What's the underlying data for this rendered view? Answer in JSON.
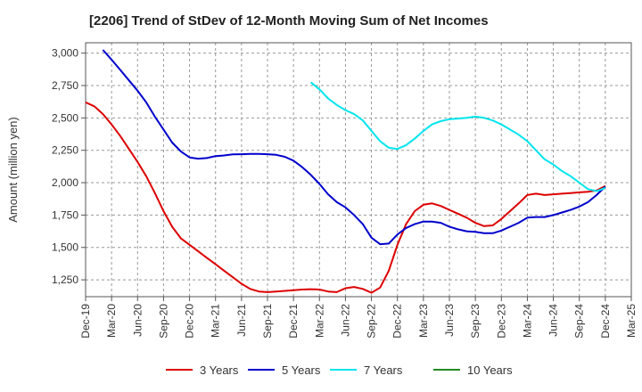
{
  "chart_data": {
    "type": "line",
    "title": "[2206]  Trend of StDev of 12-Month Moving Sum of Net Incomes",
    "xlabel": "",
    "ylabel": "Amount (million yen)",
    "x_ticks": [
      "Dec-19",
      "Mar-20",
      "Jun-20",
      "Sep-20",
      "Dec-20",
      "Mar-21",
      "Jun-21",
      "Sep-21",
      "Dec-21",
      "Mar-22",
      "Jun-22",
      "Sep-22",
      "Dec-22",
      "Mar-23",
      "Jun-23",
      "Sep-23",
      "Dec-23",
      "Mar-24",
      "Jun-24",
      "Sep-24",
      "Dec-24",
      "Mar-25"
    ],
    "x_range": [
      "2019-12",
      "2025-03"
    ],
    "y_ticks": [
      "1,250",
      "1,500",
      "1,750",
      "2,000",
      "2,250",
      "2,500",
      "2,750",
      "3,000"
    ],
    "y_tick_values": [
      1250,
      1500,
      1750,
      2000,
      2250,
      2500,
      2750,
      3000
    ],
    "ylim": [
      1120,
      3080
    ],
    "grid": true,
    "legend_position": "bottom",
    "series": [
      {
        "name": "3 Years",
        "color": "#dd0000",
        "points": [
          [
            "2019-12",
            2620
          ],
          [
            "2020-01",
            2590
          ],
          [
            "2020-02",
            2530
          ],
          [
            "2020-03",
            2450
          ],
          [
            "2020-04",
            2360
          ],
          [
            "2020-05",
            2260
          ],
          [
            "2020-06",
            2160
          ],
          [
            "2020-07",
            2050
          ],
          [
            "2020-08",
            1920
          ],
          [
            "2020-09",
            1780
          ],
          [
            "2020-10",
            1660
          ],
          [
            "2020-11",
            1570
          ],
          [
            "2020-12",
            1520
          ],
          [
            "2021-01",
            1470
          ],
          [
            "2021-02",
            1420
          ],
          [
            "2021-03",
            1370
          ],
          [
            "2021-04",
            1320
          ],
          [
            "2021-05",
            1270
          ],
          [
            "2021-06",
            1220
          ],
          [
            "2021-07",
            1180
          ],
          [
            "2021-08",
            1160
          ],
          [
            "2021-09",
            1155
          ],
          [
            "2021-10",
            1160
          ],
          [
            "2021-11",
            1165
          ],
          [
            "2021-12",
            1170
          ],
          [
            "2022-01",
            1175
          ],
          [
            "2022-02",
            1178
          ],
          [
            "2022-03",
            1175
          ],
          [
            "2022-04",
            1160
          ],
          [
            "2022-05",
            1155
          ],
          [
            "2022-06",
            1185
          ],
          [
            "2022-07",
            1195
          ],
          [
            "2022-08",
            1180
          ],
          [
            "2022-09",
            1150
          ],
          [
            "2022-10",
            1190
          ],
          [
            "2022-11",
            1320
          ],
          [
            "2022-12",
            1520
          ],
          [
            "2023-01",
            1680
          ],
          [
            "2023-02",
            1780
          ],
          [
            "2023-03",
            1830
          ],
          [
            "2023-04",
            1840
          ],
          [
            "2023-05",
            1820
          ],
          [
            "2023-06",
            1790
          ],
          [
            "2023-07",
            1760
          ],
          [
            "2023-08",
            1730
          ],
          [
            "2023-09",
            1690
          ],
          [
            "2023-10",
            1665
          ],
          [
            "2023-11",
            1670
          ],
          [
            "2023-12",
            1720
          ],
          [
            "2024-01",
            1780
          ],
          [
            "2024-02",
            1840
          ],
          [
            "2024-03",
            1905
          ],
          [
            "2024-04",
            1915
          ],
          [
            "2024-05",
            1905
          ],
          [
            "2024-06",
            1910
          ],
          [
            "2024-07",
            1915
          ],
          [
            "2024-08",
            1920
          ],
          [
            "2024-09",
            1925
          ],
          [
            "2024-10",
            1930
          ],
          [
            "2024-11",
            1940
          ],
          [
            "2024-12",
            1975
          ]
        ]
      },
      {
        "name": "5 Years",
        "color": "#0000cc",
        "points": [
          [
            "2020-02",
            3025
          ],
          [
            "2020-03",
            2950
          ],
          [
            "2020-04",
            2870
          ],
          [
            "2020-05",
            2790
          ],
          [
            "2020-06",
            2710
          ],
          [
            "2020-07",
            2620
          ],
          [
            "2020-08",
            2510
          ],
          [
            "2020-09",
            2410
          ],
          [
            "2020-10",
            2310
          ],
          [
            "2020-11",
            2240
          ],
          [
            "2020-12",
            2195
          ],
          [
            "2021-01",
            2185
          ],
          [
            "2021-02",
            2190
          ],
          [
            "2021-03",
            2205
          ],
          [
            "2021-04",
            2210
          ],
          [
            "2021-05",
            2218
          ],
          [
            "2021-06",
            2220
          ],
          [
            "2021-07",
            2222
          ],
          [
            "2021-08",
            2222
          ],
          [
            "2021-09",
            2220
          ],
          [
            "2021-10",
            2215
          ],
          [
            "2021-11",
            2200
          ],
          [
            "2021-12",
            2170
          ],
          [
            "2022-01",
            2120
          ],
          [
            "2022-02",
            2060
          ],
          [
            "2022-03",
            1990
          ],
          [
            "2022-04",
            1910
          ],
          [
            "2022-05",
            1850
          ],
          [
            "2022-06",
            1810
          ],
          [
            "2022-07",
            1750
          ],
          [
            "2022-08",
            1680
          ],
          [
            "2022-09",
            1575
          ],
          [
            "2022-10",
            1525
          ],
          [
            "2022-11",
            1530
          ],
          [
            "2022-12",
            1600
          ],
          [
            "2023-01",
            1650
          ],
          [
            "2023-02",
            1680
          ],
          [
            "2023-03",
            1700
          ],
          [
            "2023-04",
            1700
          ],
          [
            "2023-05",
            1690
          ],
          [
            "2023-06",
            1660
          ],
          [
            "2023-07",
            1640
          ],
          [
            "2023-08",
            1625
          ],
          [
            "2023-09",
            1620
          ],
          [
            "2023-10",
            1610
          ],
          [
            "2023-11",
            1610
          ],
          [
            "2023-12",
            1630
          ],
          [
            "2024-01",
            1660
          ],
          [
            "2024-02",
            1690
          ],
          [
            "2024-03",
            1730
          ],
          [
            "2024-04",
            1735
          ],
          [
            "2024-05",
            1735
          ],
          [
            "2024-06",
            1750
          ],
          [
            "2024-07",
            1770
          ],
          [
            "2024-08",
            1790
          ],
          [
            "2024-09",
            1815
          ],
          [
            "2024-10",
            1850
          ],
          [
            "2024-11",
            1905
          ],
          [
            "2024-12",
            1970
          ]
        ]
      },
      {
        "name": "7 Years",
        "color": "#00e5ee",
        "points": [
          [
            "2022-02",
            2775
          ],
          [
            "2022-03",
            2720
          ],
          [
            "2022-04",
            2650
          ],
          [
            "2022-05",
            2600
          ],
          [
            "2022-06",
            2560
          ],
          [
            "2022-07",
            2530
          ],
          [
            "2022-08",
            2480
          ],
          [
            "2022-09",
            2400
          ],
          [
            "2022-10",
            2320
          ],
          [
            "2022-11",
            2270
          ],
          [
            "2022-12",
            2260
          ],
          [
            "2023-01",
            2290
          ],
          [
            "2023-02",
            2340
          ],
          [
            "2023-03",
            2400
          ],
          [
            "2023-04",
            2450
          ],
          [
            "2023-05",
            2475
          ],
          [
            "2023-06",
            2490
          ],
          [
            "2023-07",
            2495
          ],
          [
            "2023-08",
            2500
          ],
          [
            "2023-09",
            2510
          ],
          [
            "2023-10",
            2500
          ],
          [
            "2023-11",
            2480
          ],
          [
            "2023-12",
            2450
          ],
          [
            "2024-01",
            2410
          ],
          [
            "2024-02",
            2370
          ],
          [
            "2024-03",
            2320
          ],
          [
            "2024-04",
            2250
          ],
          [
            "2024-05",
            2180
          ],
          [
            "2024-06",
            2140
          ],
          [
            "2024-07",
            2090
          ],
          [
            "2024-08",
            2050
          ],
          [
            "2024-09",
            2000
          ],
          [
            "2024-10",
            1950
          ],
          [
            "2024-11",
            1935
          ],
          [
            "2024-12",
            1960
          ]
        ]
      },
      {
        "name": "10 Years",
        "color": "#228b22",
        "points": []
      }
    ]
  }
}
